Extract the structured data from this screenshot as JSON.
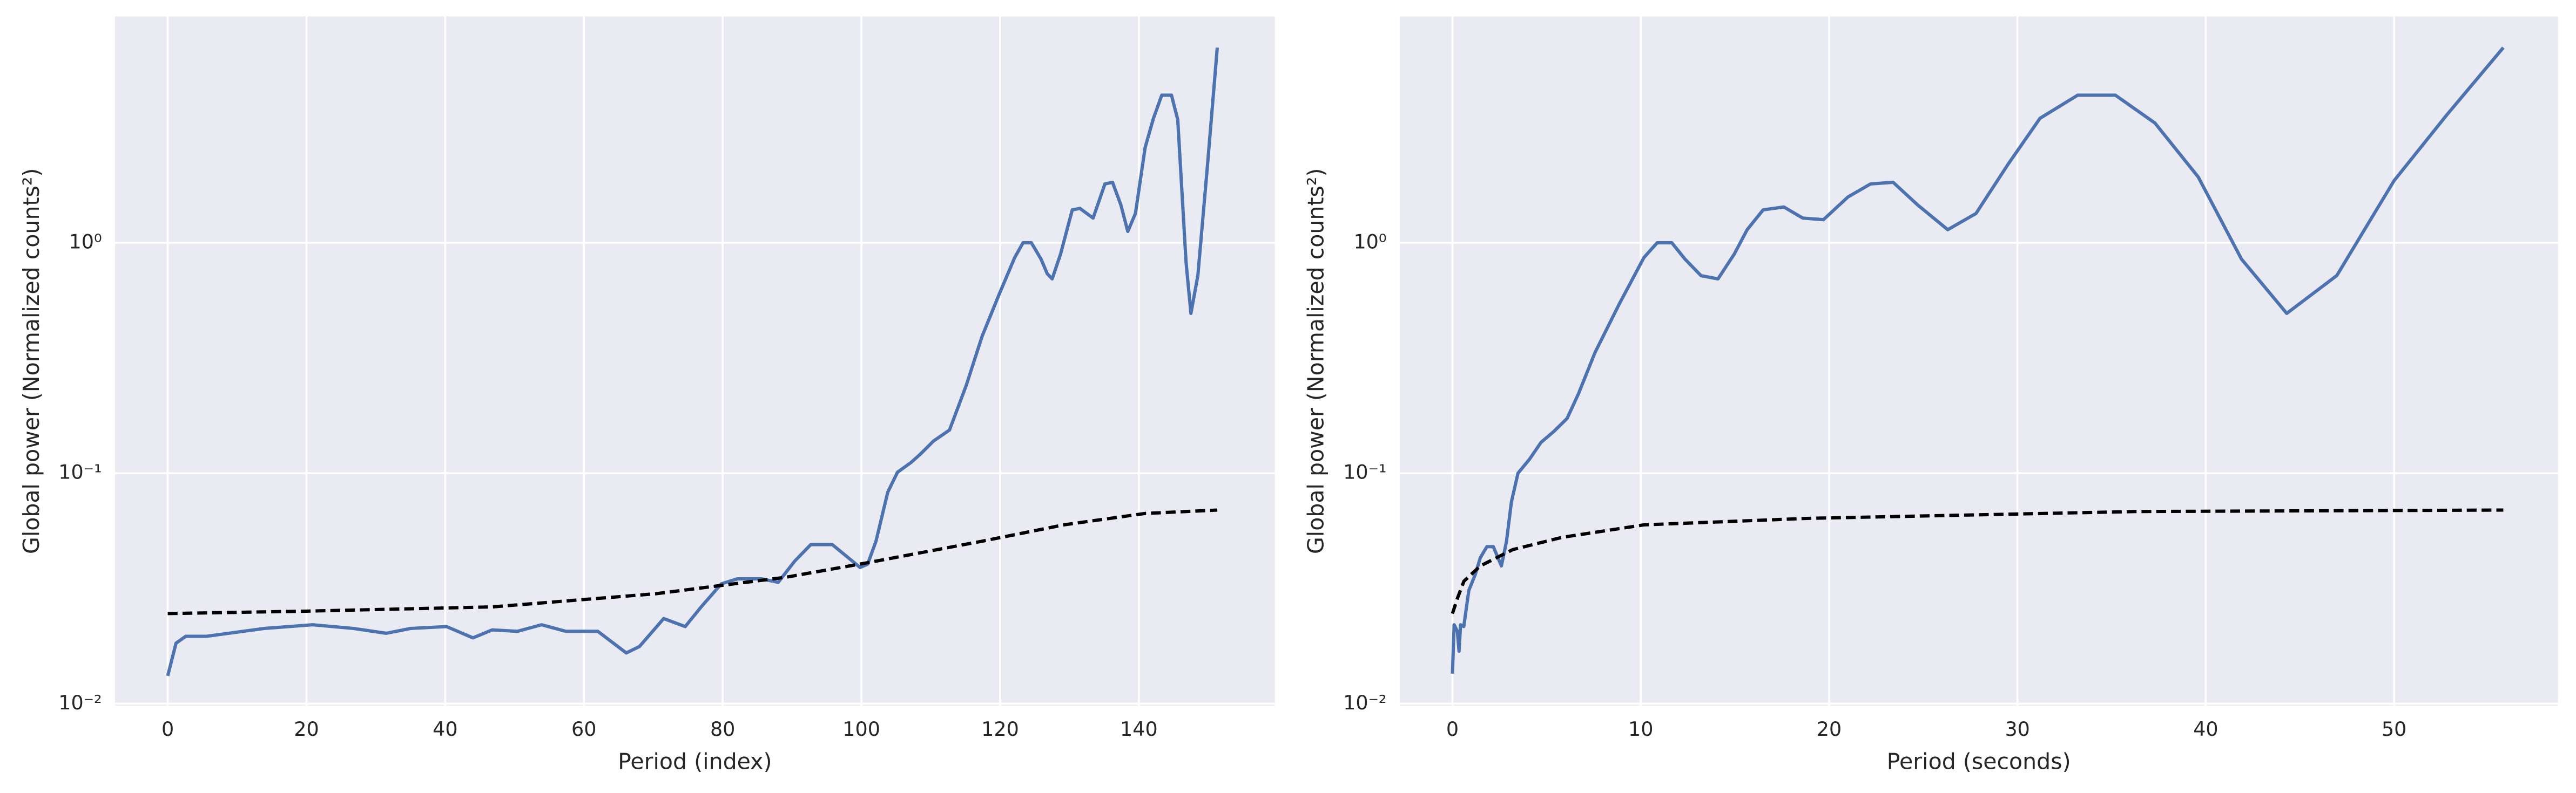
{
  "chart_data": [
    {
      "type": "line",
      "xlabel": "Period (index)",
      "ylabel": "Global power (Normalized counts²)",
      "log_y": true,
      "grid": true,
      "xlim": [
        -7.6,
        159.6
      ],
      "xticks": [
        0,
        20,
        40,
        60,
        80,
        100,
        120,
        140
      ],
      "ylim": [
        0.0098,
        9.6
      ],
      "yticks": [
        {
          "value": 0.01,
          "label": "10⁻²"
        },
        {
          "value": 0.1,
          "label": "10⁻¹"
        },
        {
          "value": 1,
          "label": "10⁰"
        }
      ],
      "series": [
        {
          "color": "#4c72b0",
          "dash": false,
          "x": [
            0,
            1.2,
            2.6,
            5.6,
            13.9,
            20.9,
            26.8,
            31.5,
            35,
            40.2,
            44,
            46.8,
            50.4,
            53.9,
            57.4,
            62,
            66.1,
            68,
            71.5,
            74.6,
            76.9,
            79.8,
            82.1,
            85.6,
            88,
            90.4,
            92.7,
            95.8,
            98.1,
            99.8,
            100.9,
            102.1,
            103.8,
            105.2,
            107.1,
            108.5,
            110.4,
            112.7,
            115.1,
            117.4,
            119.8,
            122.1,
            123.3,
            124.5,
            125.9,
            126.8,
            127.5,
            128.7,
            130.4,
            131.5,
            133.4,
            135.1,
            136.2,
            137.4,
            138.4,
            139.5,
            140.9,
            142.1,
            143.3,
            144.7,
            145.6,
            146.8,
            147.5,
            148.5,
            149.9,
            151.3
          ],
          "values": [
            0.0132,
            0.0183,
            0.0196,
            0.0196,
            0.0212,
            0.022,
            0.0212,
            0.0202,
            0.0212,
            0.0216,
            0.0193,
            0.0209,
            0.0206,
            0.022,
            0.0206,
            0.0206,
            0.0166,
            0.0177,
            0.0234,
            0.0216,
            0.0263,
            0.0331,
            0.0348,
            0.0348,
            0.0336,
            0.0416,
            0.049,
            0.049,
            0.043,
            0.039,
            0.0403,
            0.0507,
            0.0828,
            0.101,
            0.111,
            0.121,
            0.138,
            0.154,
            0.24,
            0.393,
            0.592,
            0.863,
            1.0,
            1.0,
            0.849,
            0.733,
            0.697,
            0.892,
            1.39,
            1.41,
            1.28,
            1.8,
            1.83,
            1.46,
            1.12,
            1.34,
            2.59,
            3.47,
            4.37,
            4.37,
            3.42,
            0.822,
            0.494,
            0.721,
            2.19,
            7.03
          ]
        },
        {
          "color": "#000000",
          "dash": true,
          "x": [
            0,
            20,
            46.8,
            70.4,
            89.2,
            100.9,
            117.4,
            129.2,
            140.9,
            151.3
          ],
          "values": [
            0.0246,
            0.0252,
            0.0263,
            0.03,
            0.0354,
            0.0409,
            0.0507,
            0.0597,
            0.0669,
            0.0692
          ]
        }
      ]
    },
    {
      "type": "line",
      "xlabel": "Period (seconds)",
      "ylabel": "Global power (Normalized counts²)",
      "log_y": true,
      "grid": true,
      "xlim": [
        -2.8,
        58.7
      ],
      "xticks": [
        0,
        10,
        20,
        30,
        40,
        50
      ],
      "ylim": [
        0.0098,
        9.6
      ],
      "yticks": [
        {
          "value": 0.01,
          "label": "10⁻²"
        },
        {
          "value": 0.1,
          "label": "10⁻¹"
        },
        {
          "value": 1,
          "label": "10⁰"
        }
      ],
      "series": [
        {
          "color": "#4c72b0",
          "dash": false,
          "x": [
            0,
            0.09,
            0.26,
            0.35,
            0.43,
            0.6,
            0.87,
            1.22,
            1.48,
            1.83,
            2.17,
            2.6,
            2.87,
            3.13,
            3.48,
            4.09,
            4.7,
            5.39,
            6.09,
            6.7,
            7.57,
            8.87,
            10.17,
            10.87,
            11.65,
            12.35,
            13.2,
            14.1,
            14.96,
            15.65,
            16.5,
            17.6,
            18.6,
            19.7,
            21.0,
            22.2,
            23.4,
            24.7,
            26.3,
            27.8,
            29.5,
            31.2,
            33.2,
            35.2,
            37.3,
            39.6,
            41.9,
            44.3,
            46.96,
            50.0,
            52.8,
            55.8
          ],
          "values": [
            0.0135,
            0.022,
            0.0206,
            0.0169,
            0.022,
            0.0216,
            0.031,
            0.0365,
            0.043,
            0.048,
            0.048,
            0.0396,
            0.0507,
            0.075,
            0.1,
            0.115,
            0.136,
            0.152,
            0.173,
            0.222,
            0.334,
            0.545,
            0.863,
            1.0,
            1.0,
            0.849,
            0.72,
            0.697,
            0.892,
            1.14,
            1.39,
            1.43,
            1.28,
            1.26,
            1.58,
            1.8,
            1.83,
            1.46,
            1.14,
            1.34,
            2.19,
            3.47,
            4.37,
            4.37,
            3.31,
            1.93,
            0.849,
            0.494,
            0.721,
            1.86,
            3.59,
            7.03
          ]
        },
        {
          "color": "#000000",
          "dash": true,
          "x": [
            0,
            0.26,
            0.61,
            1.48,
            3.2,
            5.83,
            10.17,
            18.9,
            27.6,
            36.3,
            55.8
          ],
          "values": [
            0.0246,
            0.0286,
            0.034,
            0.0396,
            0.0466,
            0.0527,
            0.0597,
            0.0637,
            0.0659,
            0.0682,
            0.0692
          ]
        }
      ]
    }
  ]
}
